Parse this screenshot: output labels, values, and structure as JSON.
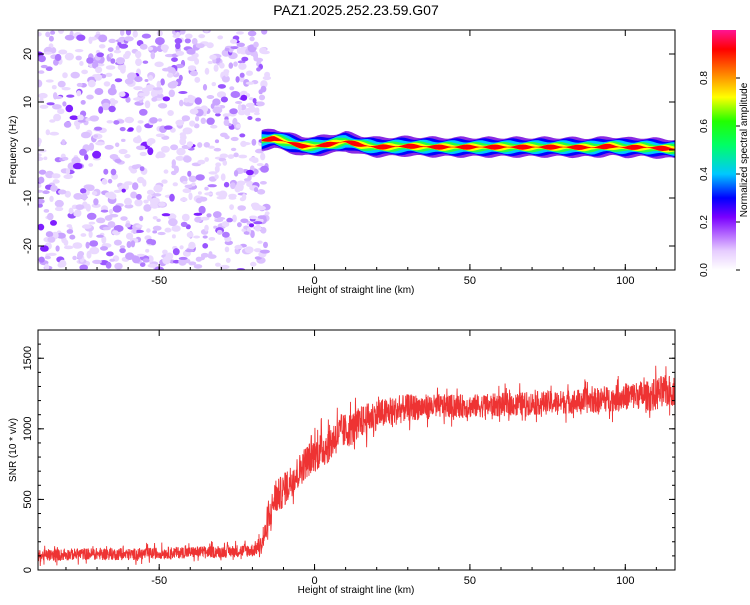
{
  "title": "PAZ1.2025.252.23.59.G07",
  "chart_data": [
    {
      "type": "heatmap",
      "xlabel": "Height of straight line (km)",
      "ylabel": "Frequency (Hz)",
      "xlim": [
        -89,
        116
      ],
      "ylim": [
        -25,
        25
      ],
      "xticks": [
        -50,
        0,
        50,
        100
      ],
      "xtick_labels": [
        "-50",
        "0",
        "50",
        "100"
      ],
      "yticks": [
        -20,
        -10,
        0,
        10,
        20
      ],
      "ytick_labels": [
        "-20",
        "-10",
        "0",
        "10",
        "20"
      ],
      "noise_region_x": [
        -89,
        -17
      ],
      "ridge": {
        "x": [
          -17,
          -13,
          -8,
          -4,
          0,
          5,
          10,
          15,
          20,
          30,
          40,
          60,
          80,
          90,
          95,
          100,
          105,
          110,
          116
        ],
        "freq": [
          2.0,
          2.4,
          1.5,
          0.8,
          0.8,
          1.2,
          1.8,
          1.0,
          0.6,
          0.8,
          0.6,
          0.6,
          0.6,
          0.5,
          0.8,
          0.5,
          0.6,
          0.4,
          0.2
        ]
      },
      "colorbar": {
        "label": "Normalized spectral amplitude",
        "ticks": [
          0.0,
          0.2,
          0.4,
          0.6,
          0.8
        ],
        "tick_labels": [
          "0.0",
          "0.2",
          "0.4",
          "0.6",
          "0.8"
        ],
        "range": [
          0,
          1
        ],
        "colors": [
          "#ffffff",
          "#d9b3ff",
          "#9b30ff",
          "#7a00ff",
          "#0000ff",
          "#00c8ff",
          "#00ff00",
          "#ffff00",
          "#ff8000",
          "#ff0000",
          "#ff1493"
        ]
      }
    },
    {
      "type": "line",
      "xlabel": "Height of straight line (km)",
      "ylabel": "SNR (10 * v/v)",
      "xlim": [
        -89,
        116
      ],
      "ylim": [
        0,
        1700
      ],
      "xticks": [
        -50,
        0,
        50,
        100
      ],
      "xtick_labels": [
        "-50",
        "0",
        "50",
        "100"
      ],
      "yticks": [
        0,
        500,
        1000,
        1500
      ],
      "ytick_labels": [
        "0",
        "500",
        "1000",
        "1500"
      ],
      "line_color": "#ee3333",
      "series": [
        {
          "name": "SNR",
          "x": [
            -89,
            -80,
            -70,
            -60,
            -50,
            -40,
            -30,
            -20,
            -17,
            -15,
            -13,
            -10,
            -7,
            -5,
            -3,
            0,
            3,
            5,
            7,
            9,
            12,
            15,
            20,
            25,
            30,
            40,
            50,
            60,
            70,
            80,
            90,
            95,
            100,
            105,
            108,
            110,
            112,
            116
          ],
          "values": [
            100,
            110,
            115,
            110,
            120,
            125,
            130,
            140,
            180,
            320,
            500,
            560,
            650,
            700,
            760,
            820,
            860,
            900,
            950,
            980,
            1000,
            1050,
            1100,
            1120,
            1150,
            1160,
            1160,
            1170,
            1180,
            1190,
            1200,
            1210,
            1230,
            1240,
            1230,
            1250,
            1260,
            1270
          ],
          "noise_amplitude": [
            70,
            70,
            70,
            70,
            70,
            70,
            70,
            80,
            110,
            180,
            200,
            200,
            200,
            200,
            200,
            210,
            220,
            220,
            220,
            210,
            200,
            190,
            180,
            170,
            160,
            140,
            140,
            140,
            140,
            140,
            150,
            150,
            160,
            170,
            180,
            200,
            200,
            180
          ]
        }
      ]
    }
  ]
}
